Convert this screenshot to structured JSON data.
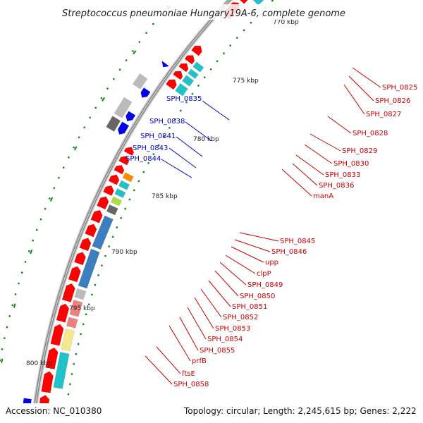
{
  "title": "Streptococcus pneumoniae Hungary19A-6, complete genome",
  "footer": {
    "accession": "Accession: NC_010380",
    "summary": "Topology: circular; Length: 2,245,615 bp; Genes: 2,222"
  },
  "scale_labels": [
    "770 kbp",
    "775 kbp",
    "780 kbp",
    "785 kbp",
    "790 kbp",
    "795 kbp",
    "800 kbp"
  ],
  "genes_reverse": [
    "SPH_0835",
    "SPH_0838",
    "SPH_0841",
    "SPH_0843",
    "SPH_0844"
  ],
  "genes_forward": [
    "SPH_0825",
    "SPH_0826",
    "SPH_0827",
    "SPH_0828",
    "SPH_0829",
    "SPH_0830",
    "SPH_0833",
    "SPH_0836",
    "manA",
    "SPH_0845",
    "SPH_0846",
    "upp",
    "clpP",
    "SPH_0849",
    "SPH_0850",
    "SPH_0851",
    "SPH_0852",
    "SPH_0853",
    "SPH_0854",
    "SPH_0855",
    "prfB",
    "ftsE",
    "SPH_0858"
  ],
  "colors": {
    "forward_label": "#cc0000",
    "reverse_label": "#0000cc",
    "cds": "#ff0000",
    "cds_reverse": "#0000ee",
    "backbone": "#888888",
    "ticks": "#118811",
    "cog_cyan": "#22c3c8",
    "cog_blue": "#3d7ebf",
    "cog_orange": "#ff8c00",
    "cog_green": "#a8e040",
    "cog_pink": "#f08080",
    "cog_yellow": "#f4e88c",
    "cog_grey": "#bbbbbb",
    "cog_darkgrey": "#666666"
  }
}
